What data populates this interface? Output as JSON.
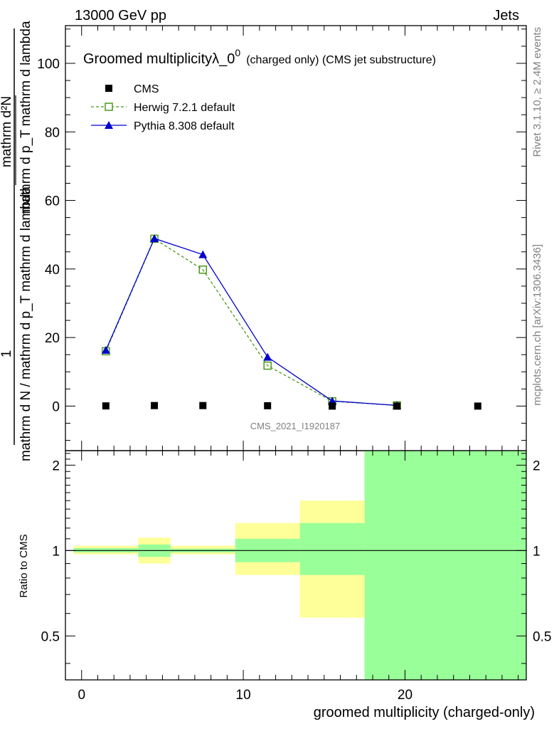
{
  "header": {
    "energy_label": "13000 GeV pp",
    "category_label": "Jets"
  },
  "side_labels": {
    "rivet": "Rivet 3.1.10, ≥ 2.4M events",
    "mcplots": "mcplots.cern.ch [arXiv:1306.3436]"
  },
  "watermark": "CMS_2021_I1920187",
  "chart_data": [
    {
      "type": "line",
      "title_main": "Groomed multiplicityλ_0",
      "title_sup": "0",
      "title_sub": "(charged only) (CMS jet substructure)",
      "ylabel_parts": {
        "numer": "1",
        "denom": "mathrm d N / mathrm d p_T mathrm d lambda",
        "right_numer": "mathrm d²N",
        "right_denom": "mathrm d p_T mathrm d lambda"
      },
      "xlim": [
        -1,
        27.5
      ],
      "ylim": [
        -13,
        111
      ],
      "y_ticks": [
        0,
        20,
        40,
        60,
        80,
        100
      ],
      "y_tick_labels": [
        "0",
        "20",
        "40",
        "60",
        "80",
        "100"
      ],
      "legend_position": "top-left",
      "series": [
        {
          "name": "CMS",
          "style": "marker-square",
          "color": "#000000",
          "x": [
            1.5,
            4.5,
            7.5,
            11.5,
            15.5,
            19.5,
            24.5
          ],
          "y": [
            0.05,
            0.15,
            0.15,
            0.1,
            0.0,
            0.0,
            0.0
          ]
        },
        {
          "name": "Herwig 7.2.1 default",
          "style": "dashed-open-square",
          "color": "#4a9a1a",
          "x": [
            1.5,
            4.5,
            7.5,
            11.5,
            15.5,
            19.5
          ],
          "y": [
            16.0,
            48.8,
            39.8,
            11.8,
            1.4,
            0.2
          ]
        },
        {
          "name": "Pythia 8.308 default",
          "style": "solid-filled-triangle",
          "color": "#0000cc",
          "x": [
            1.5,
            4.5,
            7.5,
            11.5,
            15.5,
            19.5
          ],
          "y": [
            16.3,
            48.9,
            44.2,
            14.3,
            1.5,
            0.2
          ]
        }
      ]
    },
    {
      "type": "area",
      "ylabel": "Ratio to CMS",
      "xlabel": "groomed multiplicity (charged-only)",
      "xlim": [
        -1,
        27.5
      ],
      "ylim": [
        0.35,
        2.25
      ],
      "x_ticks": [
        0,
        10,
        20
      ],
      "x_tick_labels": [
        "0",
        "10",
        "20"
      ],
      "y_ticks": [
        0.5,
        1,
        2
      ],
      "y_tick_labels": [
        "0.5",
        "1",
        "2"
      ],
      "reference_line": 1.0,
      "bins": [
        {
          "x_low": -0.5,
          "x_high": 3.5,
          "stat_low": 0.985,
          "stat_high": 1.02,
          "tot_low": 0.97,
          "tot_high": 1.04
        },
        {
          "x_low": 3.5,
          "x_high": 5.5,
          "stat_low": 0.95,
          "stat_high": 1.05,
          "tot_low": 0.9,
          "tot_high": 1.11
        },
        {
          "x_low": 5.5,
          "x_high": 9.5,
          "stat_low": 0.985,
          "stat_high": 1.015,
          "tot_low": 0.97,
          "tot_high": 1.04
        },
        {
          "x_low": 9.5,
          "x_high": 13.5,
          "stat_low": 0.91,
          "stat_high": 1.1,
          "tot_low": 0.82,
          "tot_high": 1.25
        },
        {
          "x_low": 13.5,
          "x_high": 17.5,
          "stat_low": 0.82,
          "stat_high": 1.25,
          "tot_low": 0.58,
          "tot_high": 1.5
        },
        {
          "x_low": 17.5,
          "x_high": 27.5,
          "stat_low": 0.35,
          "stat_high": 2.25,
          "tot_low": 0.35,
          "tot_high": 2.25
        }
      ]
    }
  ]
}
